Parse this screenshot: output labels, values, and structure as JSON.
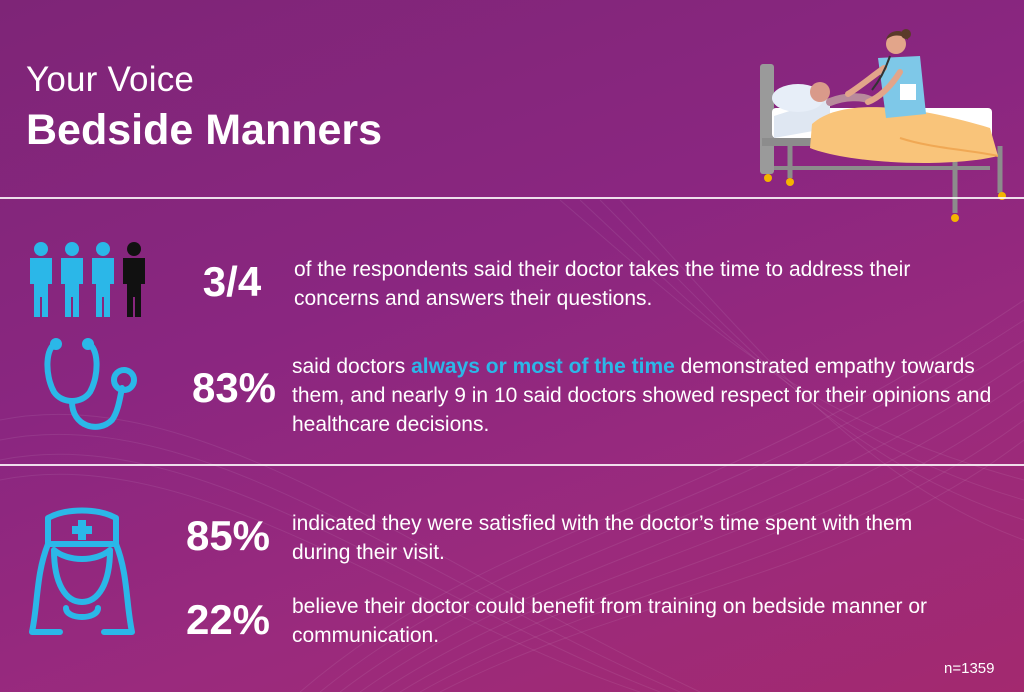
{
  "header": {
    "subtitle": "Your Voice",
    "title": "Bedside Manners"
  },
  "colors": {
    "accent": "#2bb7e8",
    "background": "#8a2680",
    "text": "#ffffff"
  },
  "icons": {
    "people": "people-icon",
    "stethoscope": "stethoscope-icon",
    "nurse": "nurse-icon",
    "illustration": "nurse-patient-bed-illustration"
  },
  "stats": [
    {
      "value": "3/4",
      "text": "of the respondents said their doctor takes the time to address their concerns and answers their questions."
    },
    {
      "value": "83%",
      "text_before": "said doctors ",
      "highlight": "always or most of the time",
      "text_after": " demonstrated empathy towards them, and nearly 9 in 10 said doctors showed respect for their opinions and healthcare decisions."
    },
    {
      "value": "85%",
      "text": "indicated they were satisfied with the doctor’s time spent with them during their visit."
    },
    {
      "value": "22%",
      "text": "believe their doctor could benefit from training on bedside manner or communication."
    }
  ],
  "footnote": "n=1359"
}
